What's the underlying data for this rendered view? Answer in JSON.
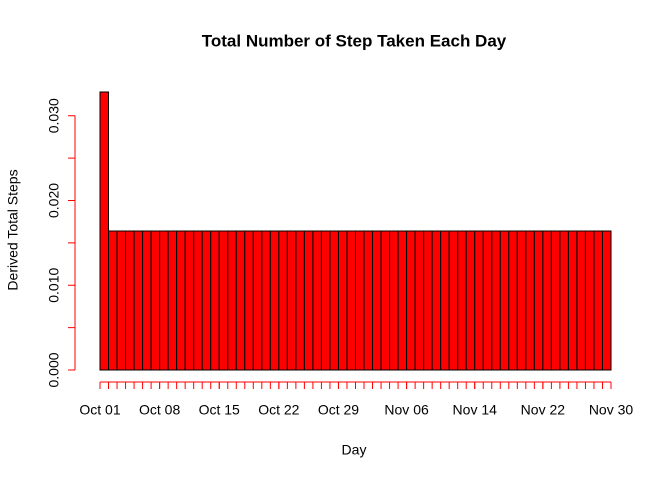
{
  "chart_data": {
    "type": "histogram",
    "title": "Total Number of Step Taken Each Day",
    "xlabel": "Day",
    "ylabel": "Derived Total Steps",
    "bins": [
      0,
      1,
      2,
      3,
      4,
      5,
      6,
      7,
      8,
      9,
      10,
      11,
      12,
      13,
      14,
      15,
      16,
      17,
      18,
      19,
      20,
      21,
      22,
      23,
      24,
      25,
      26,
      27,
      28,
      29,
      30,
      31,
      32,
      33,
      34,
      35,
      36,
      37,
      38,
      39,
      40,
      41,
      42,
      43,
      44,
      45,
      46,
      47,
      48,
      49,
      50,
      51,
      52,
      53,
      54,
      55,
      56,
      57,
      58,
      59,
      60
    ],
    "values": [
      0.0328,
      0.0164,
      0.0164,
      0.0164,
      0.0164,
      0.0164,
      0.0164,
      0.0164,
      0.0164,
      0.0164,
      0.0164,
      0.0164,
      0.0164,
      0.0164,
      0.0164,
      0.0164,
      0.0164,
      0.0164,
      0.0164,
      0.0164,
      0.0164,
      0.0164,
      0.0164,
      0.0164,
      0.0164,
      0.0164,
      0.0164,
      0.0164,
      0.0164,
      0.0164,
      0.0164,
      0.0164,
      0.0164,
      0.0164,
      0.0164,
      0.0164,
      0.0164,
      0.0164,
      0.0164,
      0.0164,
      0.0164,
      0.0164,
      0.0164,
      0.0164,
      0.0164,
      0.0164,
      0.0164,
      0.0164,
      0.0164,
      0.0164,
      0.0164,
      0.0164,
      0.0164,
      0.0164,
      0.0164,
      0.0164,
      0.0164,
      0.0164,
      0.0164,
      0.0164
    ],
    "color": "#ff0000",
    "axis_color": "#ff0000",
    "xlim": [
      0,
      60
    ],
    "ylim": [
      0,
      0.0328
    ],
    "xticks": [
      {
        "value": 0,
        "label": "Oct 01"
      },
      {
        "value": 7,
        "label": "Oct 08"
      },
      {
        "value": 14,
        "label": "Oct 15"
      },
      {
        "value": 21,
        "label": "Oct 22"
      },
      {
        "value": 28,
        "label": "Oct 29"
      },
      {
        "value": 36,
        "label": "Nov 06"
      },
      {
        "value": 44,
        "label": "Nov 14"
      },
      {
        "value": 52,
        "label": "Nov 22"
      },
      {
        "value": 60,
        "label": "Nov 30"
      }
    ],
    "yticks": [
      {
        "value": 0,
        "label": "0.000"
      },
      {
        "value": 0.01,
        "label": "0.010"
      },
      {
        "value": 0.02,
        "label": "0.020"
      },
      {
        "value": 0.03,
        "label": "0.030"
      }
    ],
    "yminor": [
      0.005,
      0.015,
      0.025
    ]
  }
}
